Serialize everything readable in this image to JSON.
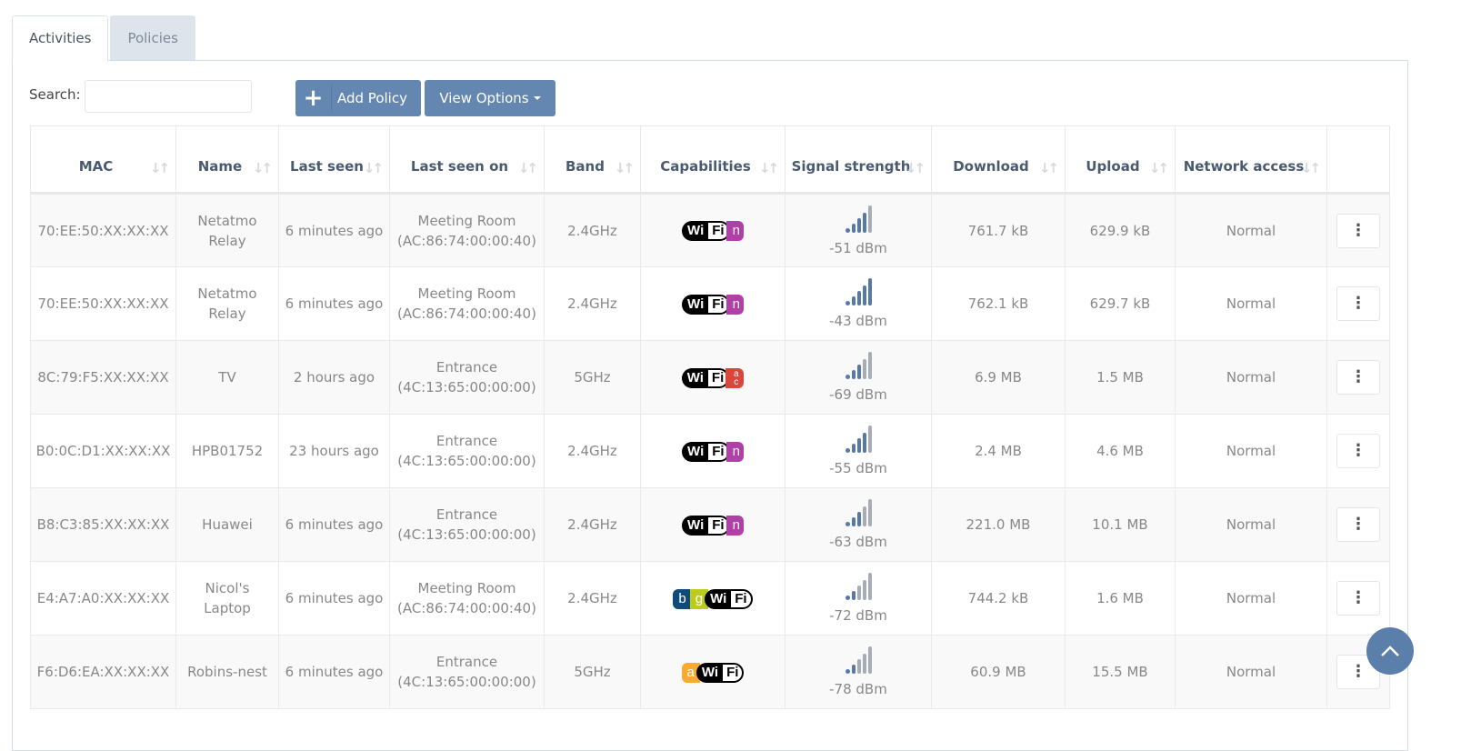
{
  "tabs": [
    {
      "label": "Activities",
      "active": true
    },
    {
      "label": "Policies",
      "active": false
    }
  ],
  "toolbar": {
    "search_label": "Search:",
    "search_value": "",
    "add_policy": "Add Policy",
    "view_options": "View Options"
  },
  "columns": [
    "MAC",
    "Name",
    "Last seen",
    "Last seen on",
    "Band",
    "Capabilities",
    "Signal strength",
    "Download",
    "Upload",
    "Network access",
    ""
  ],
  "rows": [
    {
      "mac": "70:EE:50:XX:XX:XX",
      "name": "Netatmo Relay",
      "last_seen": "6 minutes ago",
      "last_seen_on": "Meeting Room (AC:86:74:00:00:40)",
      "band": "2.4GHz",
      "cap": "n",
      "signal_bars": 4,
      "signal": "-51 dBm",
      "download": "761.7 kB",
      "upload": "629.9 kB",
      "access": "Normal"
    },
    {
      "mac": "70:EE:50:XX:XX:XX",
      "name": "Netatmo Relay",
      "last_seen": "6 minutes ago",
      "last_seen_on": "Meeting Room (AC:86:74:00:00:40)",
      "band": "2.4GHz",
      "cap": "n",
      "signal_bars": 5,
      "signal": "-43 dBm",
      "download": "762.1 kB",
      "upload": "629.7 kB",
      "access": "Normal"
    },
    {
      "mac": "8C:79:F5:XX:XX:XX",
      "name": "TV",
      "last_seen": "2 hours ago",
      "last_seen_on": "Entrance (4C:13:65:00:00:00)",
      "band": "5GHz",
      "cap": "ac",
      "signal_bars": 3,
      "signal": "-69 dBm",
      "download": "6.9 MB",
      "upload": "1.5 MB",
      "access": "Normal"
    },
    {
      "mac": "B0:0C:D1:XX:XX:XX",
      "name": "HPB01752",
      "last_seen": "23 hours ago",
      "last_seen_on": "Entrance (4C:13:65:00:00:00)",
      "band": "2.4GHz",
      "cap": "n",
      "signal_bars": 4,
      "signal": "-55 dBm",
      "download": "2.4 MB",
      "upload": "4.6 MB",
      "access": "Normal"
    },
    {
      "mac": "B8:C3:85:XX:XX:XX",
      "name": "Huawei",
      "last_seen": "6 minutes ago",
      "last_seen_on": "Entrance (4C:13:65:00:00:00)",
      "band": "2.4GHz",
      "cap": "n",
      "signal_bars": 3,
      "signal": "-63 dBm",
      "download": "221.0 MB",
      "upload": "10.1 MB",
      "access": "Normal"
    },
    {
      "mac": "E4:A7:A0:XX:XX:XX",
      "name": "Nicol's Laptop",
      "last_seen": "6 minutes ago",
      "last_seen_on": "Meeting Room (AC:86:74:00:00:40)",
      "band": "2.4GHz",
      "cap": "bg",
      "signal_bars": 2,
      "signal": "-72 dBm",
      "download": "744.2 kB",
      "upload": "1.6 MB",
      "access": "Normal"
    },
    {
      "mac": "F6:D6:EA:XX:XX:XX",
      "name": "Robins-nest",
      "last_seen": "6 minutes ago",
      "last_seen_on": "Entrance (4C:13:65:00:00:00)",
      "band": "5GHz",
      "cap": "a",
      "signal_bars": 2,
      "signal": "-78 dBm",
      "download": "60.9 MB",
      "upload": "15.5 MB",
      "access": "Normal"
    }
  ],
  "colors": {
    "primary": "#6387b0",
    "wifi_n": "#b040a8",
    "wifi_ac": "#d9463c",
    "wifi_b": "#0f4a7a",
    "wifi_g": "#bccc1e",
    "wifi_a": "#f9aa33",
    "signal_on": "#5679a6"
  },
  "icons": {
    "add": "plus-icon",
    "sort": "sort-icon",
    "menu": "kebab-menu-icon",
    "scroll_top": "chevron-up-icon"
  }
}
